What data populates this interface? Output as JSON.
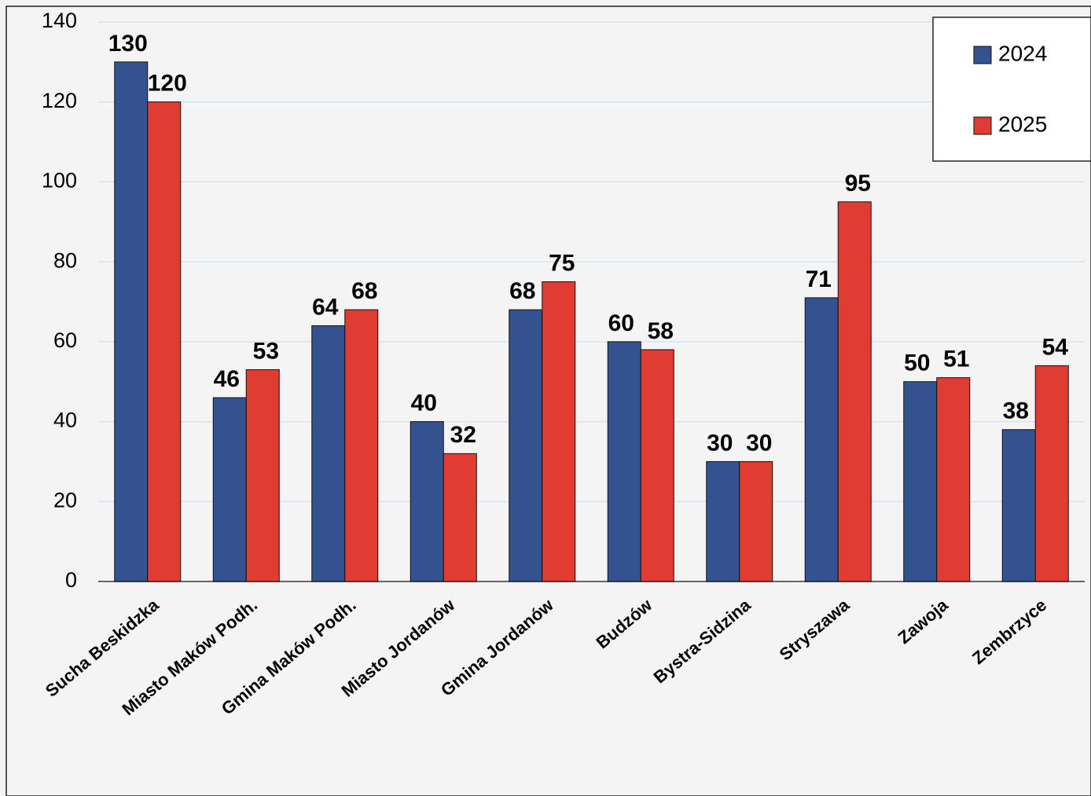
{
  "chart_data": {
    "type": "grouped_bar",
    "categories": [
      "Sucha Beskidzka",
      "Miasto Maków Podh.",
      "Gmina Maków Podh.",
      "Miasto Jordanów",
      "Gmina Jordanów",
      "Budzów",
      "Bystra-Sidzina",
      "Stryszawa",
      "Zawoja",
      "Zembrzyce"
    ],
    "series": [
      {
        "name": "2024",
        "color": "#34528f",
        "values": [
          130,
          46,
          64,
          40,
          68,
          60,
          30,
          71,
          50,
          38
        ]
      },
      {
        "name": "2025",
        "color": "#e03c31",
        "values": [
          120,
          53,
          68,
          32,
          75,
          58,
          30,
          95,
          51,
          54
        ]
      }
    ],
    "ylim": [
      0,
      140
    ],
    "yticks": [
      0,
      20,
      40,
      60,
      80,
      100,
      120,
      140
    ],
    "grid": true,
    "legend": "top-right"
  }
}
